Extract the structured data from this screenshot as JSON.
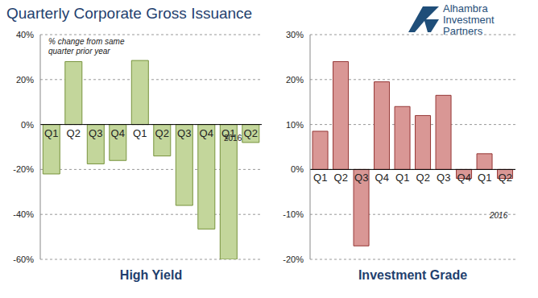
{
  "title": "Quarterly Corporate Gross Issuance",
  "logo": [
    "Alhambra",
    "Investment",
    "Partners"
  ],
  "chart_data": [
    {
      "type": "bar",
      "title": "High Yield",
      "annotations": [
        "% change from same quarter prior year",
        "2016"
      ],
      "categories": [
        "Q1",
        "Q2",
        "Q3",
        "Q4",
        "Q1",
        "Q2",
        "Q3",
        "Q4",
        "Q1",
        "Q2"
      ],
      "values": [
        -22,
        28,
        -17.5,
        -16,
        28.5,
        -14,
        -36,
        -46.5,
        -60,
        -8
      ],
      "color": "#c3d69b",
      "ylim": [
        -60,
        40
      ],
      "yticks": [
        {
          "value": -60,
          "label": "-60%"
        },
        {
          "value": -40,
          "label": "-40%"
        },
        {
          "value": -20,
          "label": "-20%"
        },
        {
          "value": 0,
          "label": "0%"
        },
        {
          "value": 20,
          "label": "20%"
        },
        {
          "value": 40,
          "label": "40%"
        }
      ],
      "grid": true
    },
    {
      "type": "bar",
      "title": "Investment Grade",
      "annotations": [
        "2016"
      ],
      "categories": [
        "Q1",
        "Q2",
        "Q3",
        "Q4",
        "Q1",
        "Q2",
        "Q3",
        "Q4",
        "Q1",
        "Q2"
      ],
      "values": [
        8.5,
        24,
        -17,
        19.5,
        14,
        12,
        16.5,
        -2,
        3.5,
        -2
      ],
      "color": "#d99795",
      "ylim": [
        -20,
        30
      ],
      "yticks": [
        {
          "value": -20,
          "label": "-20%"
        },
        {
          "value": -10,
          "label": "-10%"
        },
        {
          "value": 0,
          "label": "0%"
        },
        {
          "value": 10,
          "label": "10%"
        },
        {
          "value": 20,
          "label": "20%"
        },
        {
          "value": 30,
          "label": "30%"
        }
      ],
      "grid": true
    }
  ]
}
